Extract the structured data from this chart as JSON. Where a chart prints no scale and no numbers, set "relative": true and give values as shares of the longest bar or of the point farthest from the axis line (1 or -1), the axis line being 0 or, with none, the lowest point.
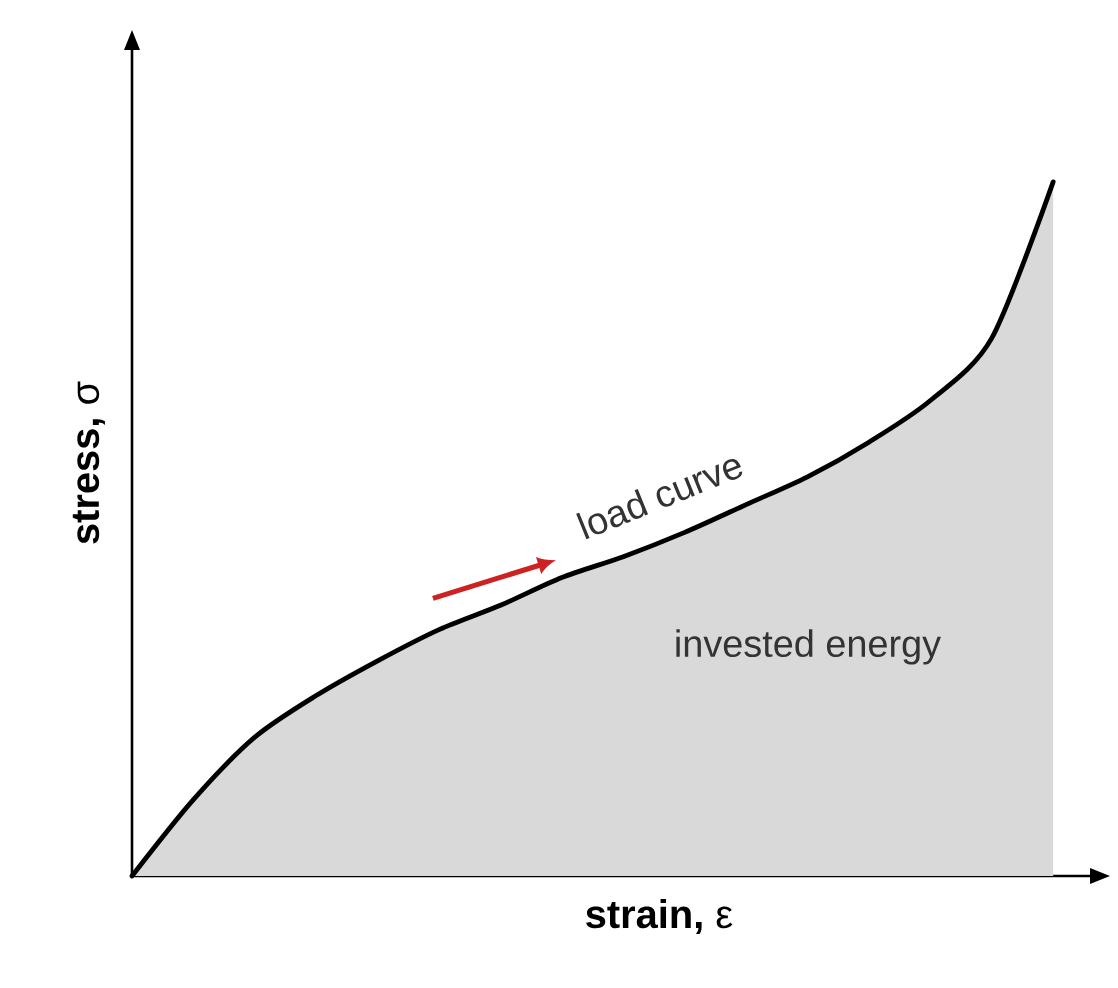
{
  "chart_data": {
    "type": "area",
    "relative": true,
    "xlabel": "**strain,** ε",
    "ylabel": "**stress,** σ",
    "categories": [
      null,
      null,
      null,
      null,
      null,
      null,
      null,
      null,
      null,
      null,
      null,
      null,
      null,
      null,
      null,
      null
    ],
    "series": [
      {
        "color": "#d9d9d9",
        "values": [
          0,
          0.11,
          0.2,
          0.26,
          0.31,
          0.355,
          0.39,
          0.43,
          0.46,
          0.495,
          0.535,
          0.575,
          0.625,
          0.685,
          0.775,
          1.0
        ]
      }
    ],
    "annotations": [
      "load curve",
      "invested energy"
    ]
  }
}
